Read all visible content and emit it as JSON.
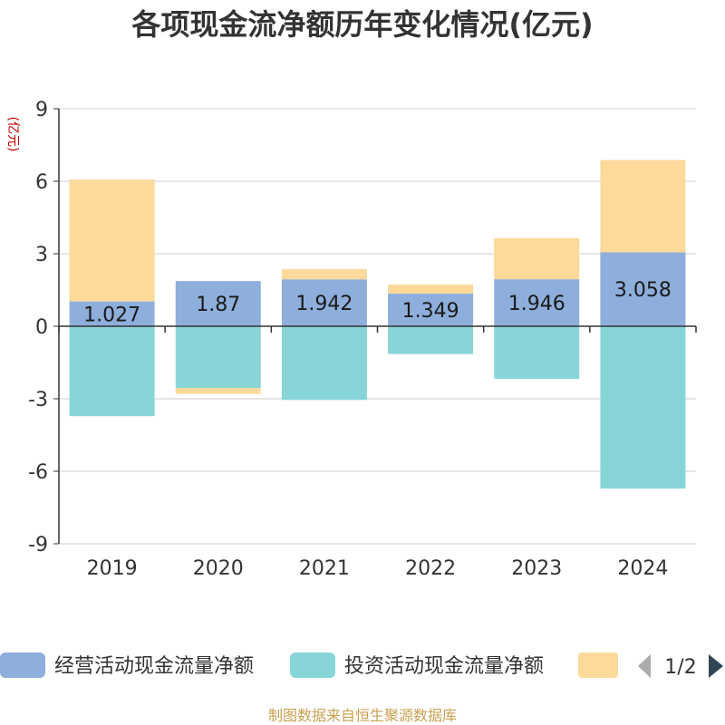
{
  "chart_data": {
    "type": "bar",
    "stacked": true,
    "title": "各项现金流净额历年变化情况(亿元)",
    "ylabel": "(亿元)",
    "xlabel": "",
    "ylim": [
      -9,
      9
    ],
    "yticks": [
      9,
      6,
      3,
      0,
      -3,
      -6,
      -9
    ],
    "categories": [
      "2019",
      "2020",
      "2021",
      "2022",
      "2023",
      "2024"
    ],
    "series": [
      {
        "name": "经营活动现金流量净额",
        "color": "#8eaedb",
        "values": [
          1.027,
          1.87,
          1.942,
          1.349,
          1.946,
          3.058
        ],
        "labels": [
          "1.027",
          "1.87",
          "1.942",
          "1.349",
          "1.946",
          "3.058"
        ]
      },
      {
        "name": "投资活动现金流量净额",
        "color": "#88d5d8",
        "values": [
          -3.72,
          -2.55,
          -3.05,
          -1.15,
          -2.18,
          -6.72
        ]
      },
      {
        "name": "",
        "color": "#fdd99a",
        "values": [
          5.05,
          -0.25,
          0.42,
          0.38,
          1.7,
          3.82
        ]
      }
    ],
    "legend_position": "bottom",
    "pagination": "1/2"
  },
  "source_text": "制图数据来自恒生聚源数据库"
}
